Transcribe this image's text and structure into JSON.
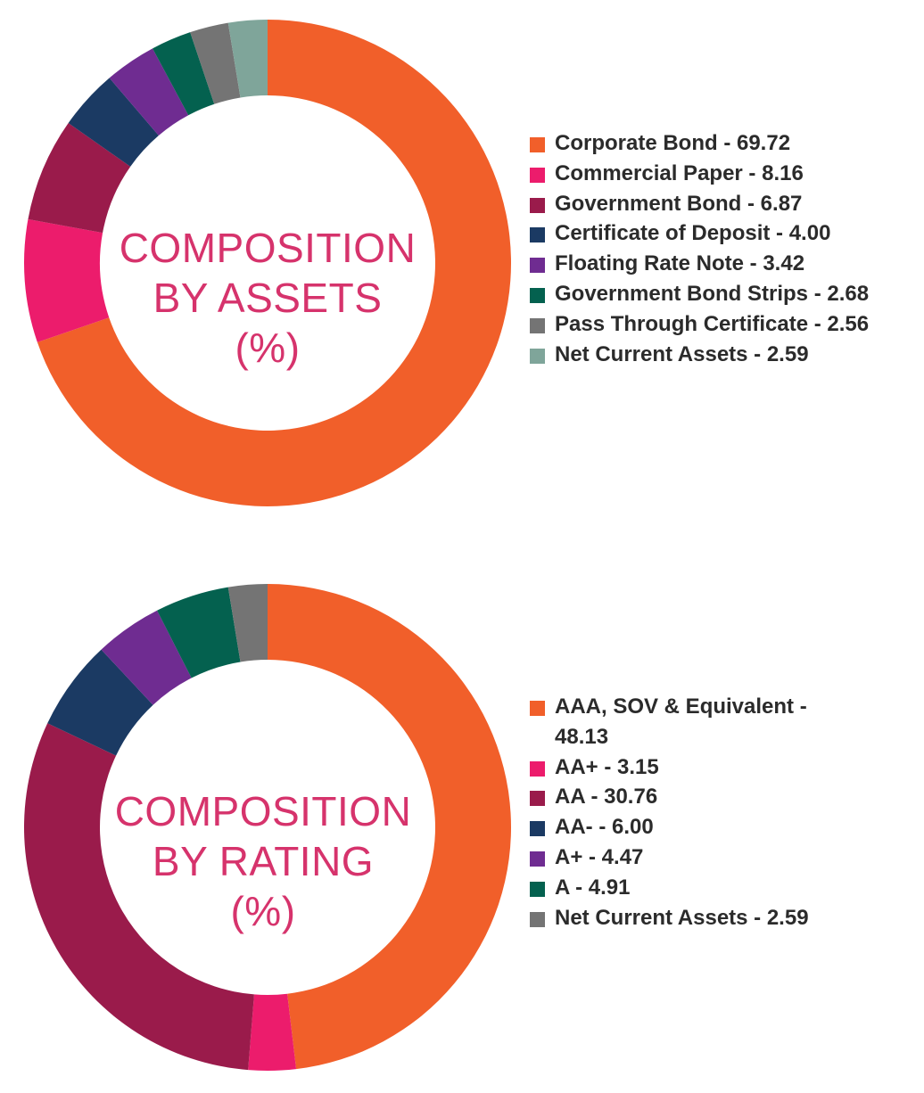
{
  "chart_data": [
    {
      "type": "pie",
      "center_title": [
        "COMPOSITION",
        "BY ASSETS",
        "(%)"
      ],
      "legend_placement": "right",
      "categories": [
        "Corporate Bond",
        "Commercial Paper",
        "Government Bond",
        "Certificate of Deposit",
        "Floating Rate Note",
        "Government Bond Strips",
        "Pass Through Certificate",
        "Net Current Assets"
      ],
      "values": [
        69.72,
        8.16,
        6.87,
        4.0,
        3.42,
        2.68,
        2.56,
        2.59
      ],
      "labels": [
        "Corporate Bond - 69.72",
        "Commercial Paper - 8.16",
        "Government Bond - 6.87",
        "Certificate of Deposit - 4.00",
        "Floating Rate Note - 3.42",
        "Government Bond Strips - 2.68",
        "Pass Through Certificate - 2.56",
        "Net Current Assets - 2.59"
      ],
      "colors": [
        "#f15f2a",
        "#ec1c6c",
        "#9a1b4b",
        "#1b3a63",
        "#6f2c91",
        "#04614f",
        "#747474",
        "#7fa59a"
      ]
    },
    {
      "type": "pie",
      "center_title": [
        "COMPOSITION",
        "BY RATING",
        "(%)"
      ],
      "legend_placement": "right",
      "categories": [
        "AAA, SOV & Equivalent",
        "AA+",
        "AA",
        "AA-",
        "A+",
        "A",
        "Net Current Assets"
      ],
      "values": [
        48.13,
        3.15,
        30.76,
        6.0,
        4.47,
        4.91,
        2.59
      ],
      "labels": [
        "AAA, SOV & Equivalent - 48.13",
        "AA+ - 3.15",
        "AA - 30.76",
        "AA- - 6.00",
        "A+ - 4.47",
        "A - 4.91",
        "Net Current Assets - 2.59"
      ],
      "colors": [
        "#f15f2a",
        "#ec1c6c",
        "#9a1b4b",
        "#1b3a63",
        "#6f2c91",
        "#04614f",
        "#747474"
      ]
    }
  ]
}
